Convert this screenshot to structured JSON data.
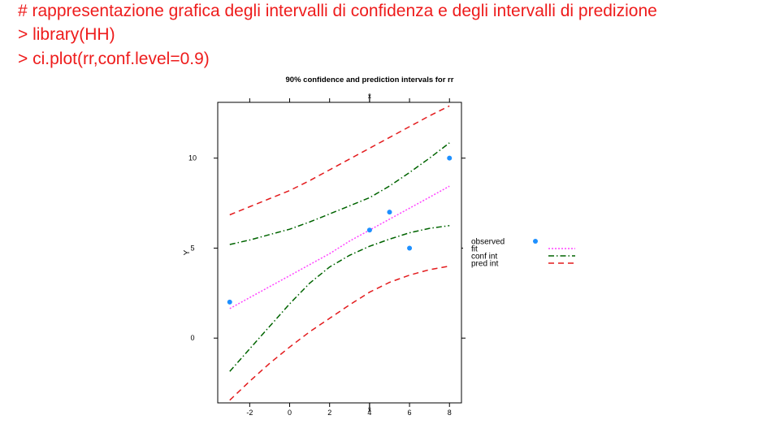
{
  "code": {
    "comment": "# rappresentazione grafica degli intervalli di confidenza e degli intervalli di predizione",
    "line1": "> library(HH)",
    "line2": "> ci.plot(rr,conf.level=0.9)"
  },
  "colors": {
    "code_text": "#ee1c1c",
    "observed": "#1e90ff",
    "fit": "#ff44ff",
    "conf": "#006400",
    "pred": "#e31a1c"
  },
  "chart_data": {
    "type": "scatter",
    "title": "90% confidence and prediction intervals for rr",
    "xlabel": "",
    "ylabel": "Y",
    "xlim": [
      -3.6,
      8.6
    ],
    "ylim": [
      -3.6,
      13.1
    ],
    "x_ticks": [
      -2,
      0,
      2,
      4,
      6,
      8
    ],
    "y_ticks": [
      0,
      5,
      10
    ],
    "xbar_marker": {
      "x": 4.0,
      "label": "x̄"
    },
    "grid": false,
    "legend_position": "right",
    "observed": {
      "name": "observed",
      "points": [
        {
          "x": -3,
          "y": 2
        },
        {
          "x": 4,
          "y": 6
        },
        {
          "x": 5,
          "y": 7
        },
        {
          "x": 6,
          "y": 5
        },
        {
          "x": 8,
          "y": 10
        }
      ]
    },
    "series": [
      {
        "name": "fit",
        "key": "fit",
        "x": [
          -3,
          -2,
          -1,
          0,
          1,
          2,
          3,
          4,
          5,
          6,
          7,
          8
        ],
        "values": [
          1.64,
          2.25,
          2.86,
          3.47,
          4.08,
          4.69,
          5.39,
          6.0,
          6.61,
          7.22,
          7.83,
          8.44
        ]
      },
      {
        "name": "conf int",
        "key": "conf",
        "x": [
          -3,
          -2,
          -1,
          0,
          1,
          2,
          3,
          4,
          5,
          6,
          7,
          8
        ],
        "values": [
          -1.85,
          -0.6,
          0.65,
          1.9,
          3.05,
          3.95,
          4.6,
          5.1,
          5.5,
          5.85,
          6.1,
          6.25
        ]
      },
      {
        "name": "conf int",
        "key": "conf",
        "x": [
          -3,
          -2,
          -1,
          0,
          1,
          2,
          3,
          4,
          5,
          6,
          7,
          8
        ],
        "values": [
          5.2,
          5.45,
          5.75,
          6.05,
          6.45,
          6.9,
          7.35,
          7.8,
          8.45,
          9.2,
          10.0,
          10.85
        ]
      },
      {
        "name": "pred int",
        "key": "pred",
        "x": [
          -3,
          -2,
          -1,
          0,
          1,
          2,
          3,
          4,
          5,
          6,
          7,
          8
        ],
        "values": [
          -3.45,
          -2.4,
          -1.4,
          -0.5,
          0.35,
          1.1,
          1.85,
          2.55,
          3.1,
          3.5,
          3.8,
          4.0
        ]
      },
      {
        "name": "pred int",
        "key": "pred",
        "x": [
          -3,
          -2,
          -1,
          0,
          1,
          2,
          3,
          4,
          5,
          6,
          7,
          8
        ],
        "values": [
          6.85,
          7.3,
          7.75,
          8.2,
          8.75,
          9.35,
          9.95,
          10.55,
          11.15,
          11.75,
          12.35,
          12.9
        ]
      }
    ],
    "legend": [
      {
        "label": "observed",
        "key": "observed"
      },
      {
        "label": "fit",
        "key": "fit"
      },
      {
        "label": "conf int",
        "key": "conf"
      },
      {
        "label": "pred int",
        "key": "pred"
      }
    ]
  }
}
